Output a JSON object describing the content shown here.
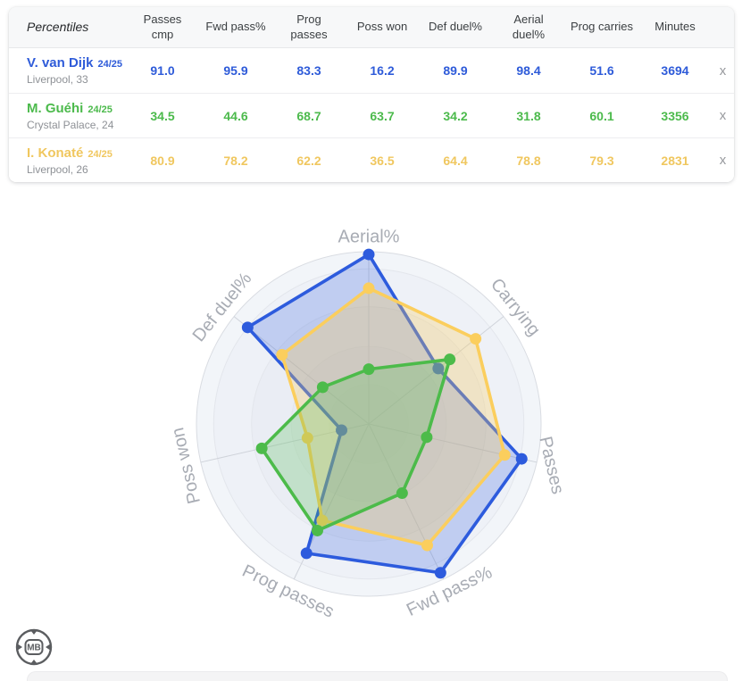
{
  "table": {
    "header_first": "Percentiles",
    "headers": [
      "Passes\ncmp",
      "Fwd pass%",
      "Prog\npasses",
      "Poss won",
      "Def duel%",
      "Aerial\nduel%",
      "Prog carries",
      "Minutes"
    ],
    "remove_label": "x",
    "rows": [
      {
        "player": "V. van Dijk",
        "season": "24/25",
        "club": "Liverpool, 33",
        "color": "#2e5bd9",
        "values": [
          "91.0",
          "95.9",
          "83.3",
          "16.2",
          "89.9",
          "98.4",
          "51.6",
          "3694"
        ]
      },
      {
        "player": "M. Guéhi",
        "season": "24/25",
        "club": "Crystal Palace, 24",
        "color": "#4cba4c",
        "values": [
          "34.5",
          "44.6",
          "68.7",
          "63.7",
          "34.2",
          "31.8",
          "60.1",
          "3356"
        ]
      },
      {
        "player": "I. Konaté",
        "season": "24/25",
        "club": "Liverpool, 26",
        "color": "#f0c75f",
        "values": [
          "80.9",
          "78.2",
          "62.2",
          "36.5",
          "64.4",
          "78.8",
          "79.3",
          "2831"
        ]
      }
    ]
  },
  "chart_data": {
    "type": "radar",
    "axes": [
      "Aerial%",
      "Carrying",
      "Passes",
      "Fwd pass%",
      "Prog passes",
      "Poss won",
      "Def duel%"
    ],
    "range": [
      0,
      100
    ],
    "grid": "circular",
    "legend_position": "none",
    "series": [
      {
        "name": "V. van Dijk 24/25",
        "color": "#2d5bdd",
        "values": [
          98.4,
          51.6,
          91.0,
          95.9,
          83.3,
          16.2,
          89.9
        ]
      },
      {
        "name": "M. Guéhi 24/25",
        "color": "#4cbb4a",
        "values": [
          31.8,
          60.1,
          34.5,
          44.6,
          68.7,
          63.7,
          34.2
        ]
      },
      {
        "name": "I. Konaté 24/25",
        "color": "#fbce5d",
        "values": [
          78.8,
          79.3,
          80.9,
          78.2,
          62.2,
          36.5,
          64.4
        ]
      }
    ]
  },
  "logo": {
    "text": "MB"
  }
}
